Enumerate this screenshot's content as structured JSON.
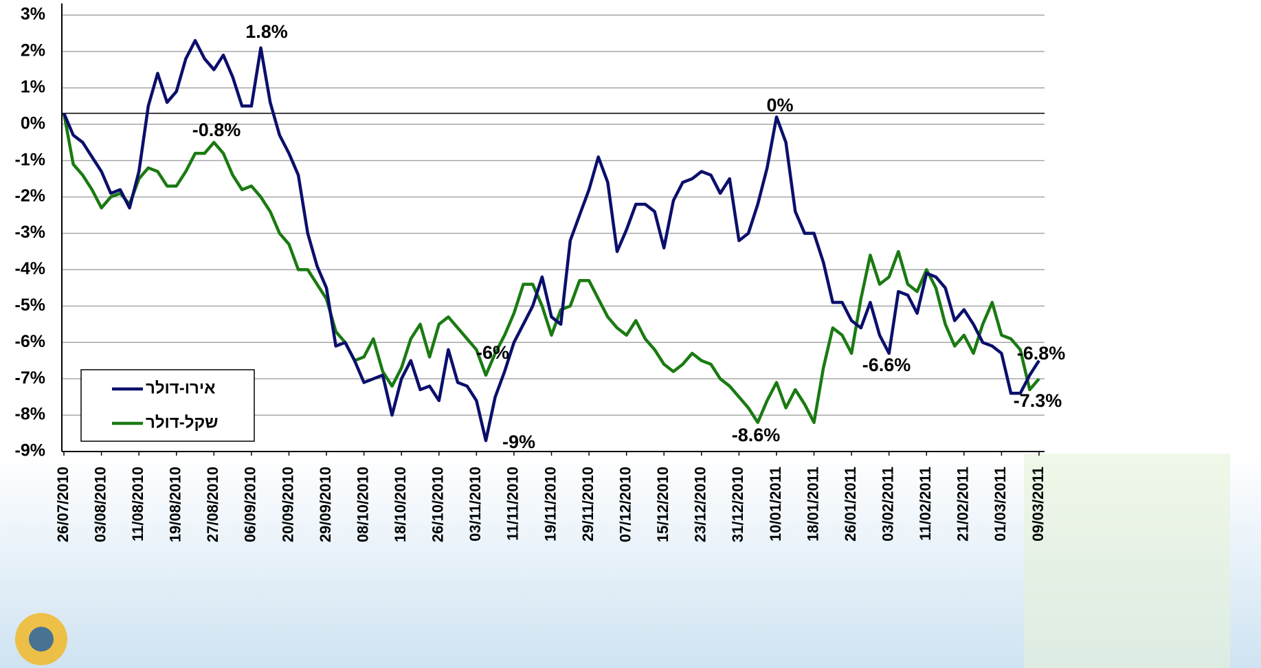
{
  "chart_data": {
    "type": "line",
    "categories": [
      "26/07/2010",
      null,
      null,
      null,
      "03/08/2010",
      null,
      null,
      null,
      "11/08/2010",
      null,
      null,
      null,
      "19/08/2010",
      null,
      null,
      null,
      "27/08/2010",
      null,
      null,
      null,
      "06/09/2010",
      null,
      null,
      null,
      "20/09/2010",
      null,
      null,
      null,
      "29/09/2010",
      null,
      null,
      null,
      "08/10/2010",
      null,
      null,
      null,
      "18/10/2010",
      null,
      null,
      null,
      "26/10/2010",
      null,
      null,
      null,
      "03/11/2010",
      null,
      null,
      null,
      "11/11/2010",
      null,
      null,
      null,
      "19/11/2010",
      null,
      null,
      null,
      "29/11/2010",
      null,
      null,
      null,
      "07/12/2010",
      null,
      null,
      null,
      "15/12/2010",
      null,
      null,
      null,
      "23/12/2010",
      null,
      null,
      null,
      "31/12/2010",
      null,
      null,
      null,
      "10/01/2011",
      null,
      null,
      null,
      "18/01/2011",
      null,
      null,
      null,
      "26/01/2011",
      null,
      null,
      null,
      "03/02/2011",
      null,
      null,
      null,
      "11/02/2011",
      null,
      null,
      null,
      "21/02/2011",
      null,
      null,
      null,
      "01/03/2011",
      null,
      null,
      null,
      "09/03/2011"
    ],
    "series": [
      {
        "name": "אירו-דולר",
        "color": "#0b0f6b",
        "values": [
          0.3,
          -0.3,
          -0.5,
          -0.9,
          -1.3,
          -1.9,
          -1.8,
          -2.3,
          -1.3,
          0.5,
          1.4,
          0.6,
          0.9,
          1.8,
          2.3,
          1.8,
          1.5,
          1.9,
          1.3,
          0.5,
          0.5,
          2.1,
          0.6,
          -0.3,
          -0.8,
          -1.4,
          -3.0,
          -3.9,
          -4.5,
          -6.1,
          -6.0,
          -6.5,
          -7.1,
          -7.0,
          -6.9,
          -8.0,
          -7.0,
          -6.5,
          -7.3,
          -7.2,
          -7.6,
          -6.2,
          -7.1,
          -7.2,
          -7.6,
          -8.7,
          -7.5,
          -6.8,
          -6.0,
          -5.5,
          -5.0,
          -4.2,
          -5.3,
          -5.5,
          -3.2,
          -2.5,
          -1.8,
          -0.9,
          -1.6,
          -3.5,
          -2.9,
          -2.2,
          -2.2,
          -2.4,
          -3.4,
          -2.1,
          -1.6,
          -1.5,
          -1.3,
          -1.4,
          -1.9,
          -1.5,
          -3.2,
          -3.0,
          -2.2,
          -1.2,
          0.2,
          -0.5,
          -2.4,
          -3.0,
          -3.0,
          -3.8,
          -4.9,
          -4.9,
          -5.4,
          -5.6,
          -4.9,
          -5.8,
          -6.3,
          -4.6,
          -4.7,
          -5.2,
          -4.1,
          -4.2,
          -4.5,
          -5.4,
          -5.1,
          -5.5,
          -6.0,
          -6.1,
          -6.3,
          -7.4,
          -7.4,
          -6.9,
          -6.5
        ]
      },
      {
        "name": "שקל-דולר",
        "color": "#1a7a12",
        "values": [
          0.3,
          -1.1,
          -1.4,
          -1.8,
          -2.3,
          -2.0,
          -1.9,
          -2.2,
          -1.5,
          -1.2,
          -1.3,
          -1.7,
          -1.7,
          -1.3,
          -0.8,
          -0.8,
          -0.5,
          -0.8,
          -1.4,
          -1.8,
          -1.7,
          -2.0,
          -2.4,
          -3.0,
          -3.3,
          -4.0,
          -4.0,
          -4.4,
          -4.8,
          -5.7,
          -6.0,
          -6.5,
          -6.4,
          -5.9,
          -6.8,
          -7.2,
          -6.7,
          -5.9,
          -5.5,
          -6.4,
          -5.5,
          -5.3,
          -5.6,
          -5.9,
          -6.2,
          -6.9,
          -6.3,
          -5.8,
          -5.2,
          -4.4,
          -4.4,
          -5.0,
          -5.8,
          -5.1,
          -5.0,
          -4.3,
          -4.3,
          -4.8,
          -5.3,
          -5.6,
          -5.8,
          -5.4,
          -5.9,
          -6.2,
          -6.6,
          -6.8,
          -6.6,
          -6.3,
          -6.5,
          -6.6,
          -7.0,
          -7.2,
          -7.5,
          -7.8,
          -8.2,
          -7.6,
          -7.1,
          -7.8,
          -7.3,
          -7.7,
          -8.2,
          -6.7,
          -5.6,
          -5.8,
          -6.3,
          -4.8,
          -3.6,
          -4.4,
          -4.2,
          -3.5,
          -4.4,
          -4.6,
          -4.0,
          -4.5,
          -5.5,
          -6.1,
          -5.8,
          -6.3,
          -5.5,
          -4.9,
          -5.8,
          -5.9,
          -6.2,
          -7.3,
          -7.0
        ]
      }
    ],
    "ylim": [
      -9,
      3
    ],
    "yticks": [
      {
        "value": 3,
        "label": "3%"
      },
      {
        "value": 2,
        "label": "2%"
      },
      {
        "value": 1,
        "label": "1%"
      },
      {
        "value": 0,
        "label": "0%"
      },
      {
        "value": -1,
        "label": "-1%"
      },
      {
        "value": -2,
        "label": "-2%"
      },
      {
        "value": -3,
        "label": "-3%"
      },
      {
        "value": -4,
        "label": "-4%"
      },
      {
        "value": -5,
        "label": "-5%"
      },
      {
        "value": -6,
        "label": "-6%"
      },
      {
        "value": -7,
        "label": "-7%"
      },
      {
        "value": -8,
        "label": "-8%"
      },
      {
        "value": -9,
        "label": "-9%"
      }
    ],
    "reference_line": 0.3,
    "grid": true,
    "legend": "lower left",
    "annotations": [
      "1.8%",
      "-0.8%",
      "-6%",
      "-9%",
      "0%",
      "-8.6%",
      "-6.6%",
      "-6.8%",
      "-7.3%"
    ]
  }
}
